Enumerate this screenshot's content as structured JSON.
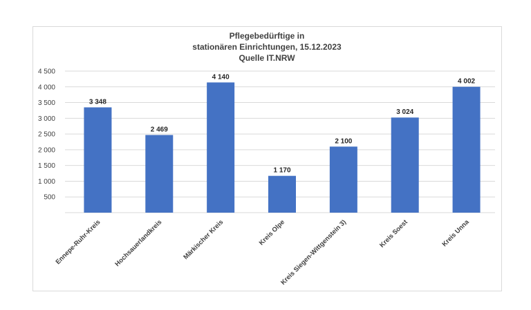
{
  "chart_data": {
    "type": "bar",
    "title_lines": [
      "Pflegebedürftige in",
      "stationären Einrichtungen, 15.12.2023",
      "Quelle IT.NRW"
    ],
    "categories": [
      "Ennepe-Ruhr-Kreis",
      "Hochsauerlandkreis",
      "Märkischer Kreis",
      "Kreis Olpe",
      "Kreis Siegen-Wittgenstein 3)",
      "Kreis Soest",
      "Kreis Unna"
    ],
    "values": [
      3348,
      2469,
      4140,
      1170,
      2100,
      3024,
      4002
    ],
    "data_labels": [
      "3 348",
      "2 469",
      "4 140",
      "1 170",
      "2 100",
      "3 024",
      "4 002"
    ],
    "yticks": [
      500,
      1000,
      1500,
      2000,
      2500,
      3000,
      3500,
      4000,
      4500
    ],
    "ytick_labels": [
      "500",
      "1 000",
      "1 500",
      "2 000",
      "2 500",
      "3 000",
      "3 500",
      "4 000",
      "4 500"
    ],
    "ylim": [
      0,
      4500
    ],
    "grid": true,
    "bar_color": "#4472c4",
    "grid_color": "#d9d9d9"
  }
}
